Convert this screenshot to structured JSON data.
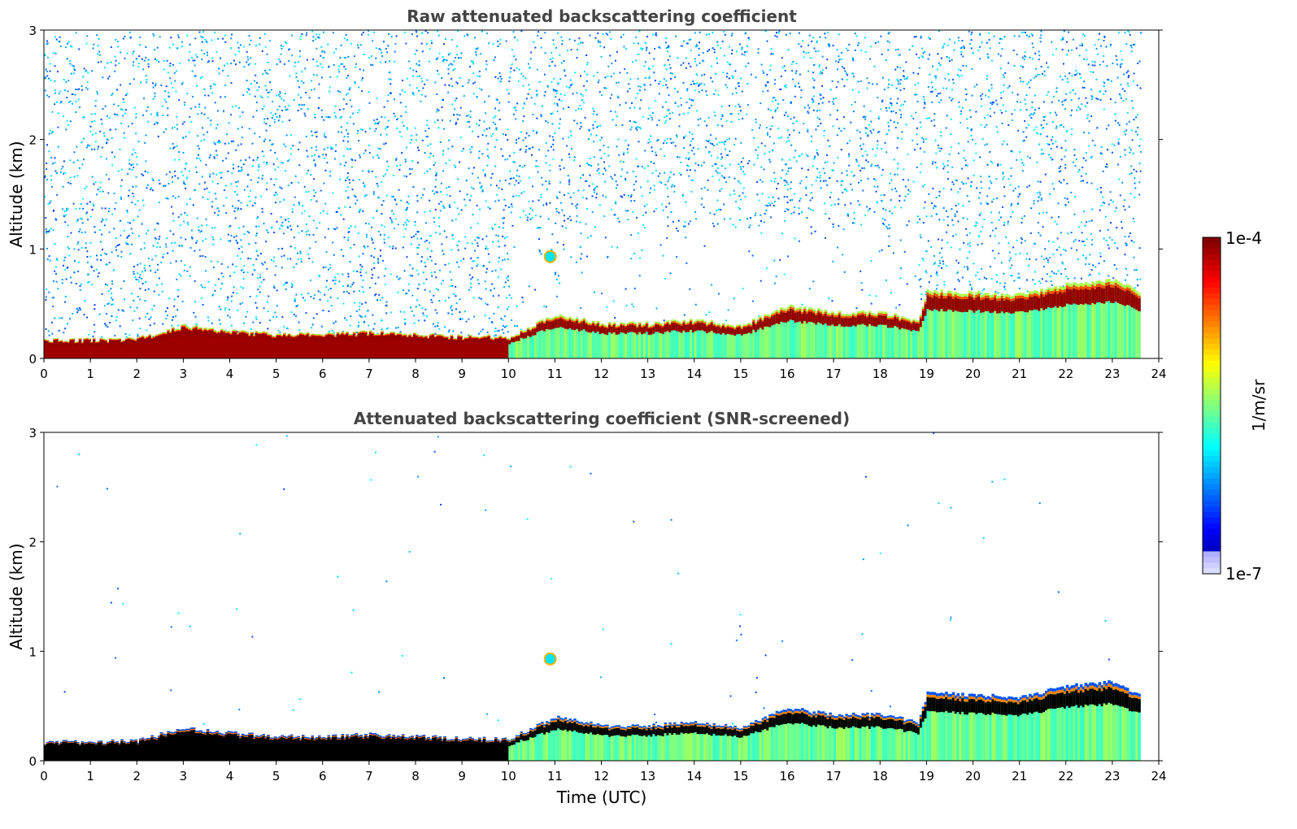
{
  "chart_data": [
    {
      "type": "heatmap",
      "title": "Raw attenuated backscattering coefficient",
      "xlabel": "",
      "ylabel": "Altitude (km)",
      "xlim": [
        0,
        24
      ],
      "ylim": [
        0,
        3
      ],
      "xticks": [
        0,
        1,
        2,
        3,
        4,
        5,
        6,
        7,
        8,
        9,
        10,
        11,
        12,
        13,
        14,
        15,
        16,
        17,
        18,
        19,
        20,
        21,
        22,
        23,
        24
      ],
      "yticks": [
        0,
        1,
        2,
        3
      ],
      "data_end_hour": 23.6,
      "boundary_layer_top_km": [
        {
          "x": 0,
          "y": 0.17
        },
        {
          "x": 1,
          "y": 0.17
        },
        {
          "x": 2,
          "y": 0.18
        },
        {
          "x": 3,
          "y": 0.3
        },
        {
          "x": 4,
          "y": 0.25
        },
        {
          "x": 5,
          "y": 0.22
        },
        {
          "x": 6,
          "y": 0.22
        },
        {
          "x": 7,
          "y": 0.24
        },
        {
          "x": 8,
          "y": 0.22
        },
        {
          "x": 9,
          "y": 0.2
        },
        {
          "x": 10,
          "y": 0.2
        },
        {
          "x": 11,
          "y": 0.4
        },
        {
          "x": 12,
          "y": 0.32
        },
        {
          "x": 13,
          "y": 0.32
        },
        {
          "x": 14,
          "y": 0.35
        },
        {
          "x": 15,
          "y": 0.3
        },
        {
          "x": 16,
          "y": 0.48
        },
        {
          "x": 17,
          "y": 0.42
        },
        {
          "x": 18,
          "y": 0.42
        },
        {
          "x": 18.8,
          "y": 0.35
        },
        {
          "x": 19,
          "y": 0.62
        },
        {
          "x": 20,
          "y": 0.6
        },
        {
          "x": 21,
          "y": 0.58
        },
        {
          "x": 22,
          "y": 0.68
        },
        {
          "x": 23,
          "y": 0.72
        },
        {
          "x": 23.6,
          "y": 0.6
        }
      ],
      "cloud": {
        "x": 10.9,
        "y": 0.93
      },
      "noise_level": "high"
    },
    {
      "type": "heatmap",
      "title": "Attenuated backscattering coefficient (SNR-screened)",
      "xlabel": "Time (UTC)",
      "ylabel": "Altitude (km)",
      "xlim": [
        0,
        24
      ],
      "ylim": [
        0,
        3
      ],
      "xticks": [
        0,
        1,
        2,
        3,
        4,
        5,
        6,
        7,
        8,
        9,
        10,
        11,
        12,
        13,
        14,
        15,
        16,
        17,
        18,
        19,
        20,
        21,
        22,
        23,
        24
      ],
      "yticks": [
        0,
        1,
        2,
        3
      ],
      "data_end_hour": 23.6,
      "boundary_layer_top_km": [
        {
          "x": 0,
          "y": 0.17
        },
        {
          "x": 1,
          "y": 0.17
        },
        {
          "x": 2,
          "y": 0.18
        },
        {
          "x": 3,
          "y": 0.3
        },
        {
          "x": 4,
          "y": 0.25
        },
        {
          "x": 5,
          "y": 0.22
        },
        {
          "x": 6,
          "y": 0.22
        },
        {
          "x": 7,
          "y": 0.24
        },
        {
          "x": 8,
          "y": 0.22
        },
        {
          "x": 9,
          "y": 0.2
        },
        {
          "x": 10,
          "y": 0.2
        },
        {
          "x": 11,
          "y": 0.4
        },
        {
          "x": 12,
          "y": 0.32
        },
        {
          "x": 13,
          "y": 0.32
        },
        {
          "x": 14,
          "y": 0.35
        },
        {
          "x": 15,
          "y": 0.3
        },
        {
          "x": 16,
          "y": 0.48
        },
        {
          "x": 17,
          "y": 0.42
        },
        {
          "x": 18,
          "y": 0.42
        },
        {
          "x": 18.8,
          "y": 0.35
        },
        {
          "x": 19,
          "y": 0.62
        },
        {
          "x": 20,
          "y": 0.6
        },
        {
          "x": 21,
          "y": 0.58
        },
        {
          "x": 22,
          "y": 0.68
        },
        {
          "x": 23,
          "y": 0.72
        },
        {
          "x": 23.6,
          "y": 0.6
        }
      ],
      "cloud": {
        "x": 10.9,
        "y": 0.93
      },
      "noise_level": "low"
    }
  ],
  "colorbar": {
    "label": "1/m/sr",
    "max_label": "1e-4",
    "min_label": "1e-7",
    "colormap": "jet"
  }
}
